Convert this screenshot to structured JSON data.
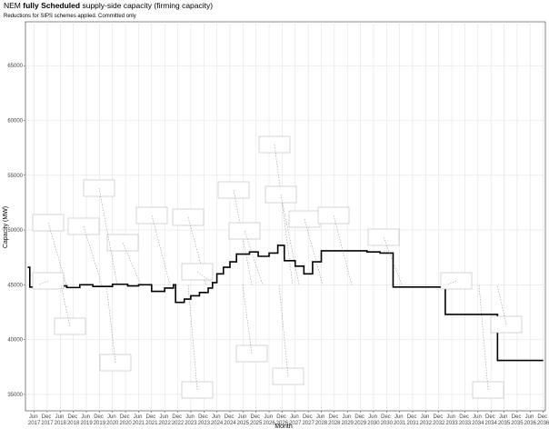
{
  "chart_data": {
    "type": "line",
    "title_prefix": "NEM",
    "title_bold": "fully Scheduled",
    "title_suffix": "supply-side capacity (firming capacity)",
    "subtitle": "Reductions for SIPS schemes applied. Committed only",
    "x_label": "Month",
    "y_label": "Capacity (MW)",
    "x": [
      "2017-03",
      "2017-04",
      "2018-01",
      "2018-09",
      "2019-03",
      "2019-09",
      "2020-06",
      "2021-01",
      "2021-06",
      "2021-12",
      "2022-06",
      "2022-10",
      "2022-11",
      "2023-03",
      "2023-06",
      "2023-10",
      "2024-02",
      "2024-04",
      "2024-06",
      "2024-09",
      "2024-12",
      "2025-03",
      "2025-09",
      "2026-01",
      "2026-06",
      "2026-10",
      "2027-01",
      "2027-06",
      "2027-10",
      "2028-02",
      "2028-06",
      "2030-03",
      "2030-09",
      "2031-03",
      "2033-03",
      "2035-03",
      "2036-12"
    ],
    "series": [
      {
        "color": "#000000",
        "values": [
          46600,
          44800,
          44900,
          44750,
          45000,
          44850,
          45050,
          44900,
          45000,
          44400,
          44700,
          45000,
          43400,
          43700,
          44000,
          44300,
          44700,
          45200,
          46000,
          46600,
          47100,
          47800,
          48000,
          47600,
          47900,
          48600,
          47200,
          46700,
          46000,
          47100,
          48100,
          48000,
          47900,
          44800,
          42300,
          38100,
          38100
        ]
      }
    ],
    "xlim": [
      "2017-02",
      "2037-01"
    ],
    "ylim": [
      33500,
      69000
    ],
    "yticks": [
      35000,
      40000,
      45000,
      50000,
      55000,
      60000,
      65000
    ],
    "xticks": [
      {
        "value": "2017-06",
        "label": "Jun 2017"
      },
      {
        "value": "2017-12",
        "label": "Dec 2017"
      },
      {
        "value": "2018-06",
        "label": "Jun 2018"
      },
      {
        "value": "2018-12",
        "label": "Dec 2018"
      },
      {
        "value": "2019-06",
        "label": "Jun 2019"
      },
      {
        "value": "2019-12",
        "label": "Dec 2019"
      },
      {
        "value": "2020-06",
        "label": "Jun 2020"
      },
      {
        "value": "2020-12",
        "label": "Dec 2020"
      },
      {
        "value": "2021-06",
        "label": "Jun 2021"
      },
      {
        "value": "2021-12",
        "label": "Dec 2021"
      },
      {
        "value": "2022-06",
        "label": "Jun 2022"
      },
      {
        "value": "2022-12",
        "label": "Dec 2022"
      },
      {
        "value": "2023-06",
        "label": "Jun 2023"
      },
      {
        "value": "2023-12",
        "label": "Dec 2023"
      },
      {
        "value": "2024-06",
        "label": "Jun 2024"
      },
      {
        "value": "2024-12",
        "label": "Dec 2024"
      },
      {
        "value": "2025-06",
        "label": "Jun 2025"
      },
      {
        "value": "2025-12",
        "label": "Dec 2025"
      },
      {
        "value": "2026-06",
        "label": "Jun 2026"
      },
      {
        "value": "2026-12",
        "label": "Dec 2026"
      },
      {
        "value": "2027-06",
        "label": "Jun 2027"
      },
      {
        "value": "2027-12",
        "label": "Dec 2027"
      },
      {
        "value": "2028-06",
        "label": "Jun 2028"
      },
      {
        "value": "2028-12",
        "label": "Dec 2028"
      },
      {
        "value": "2029-06",
        "label": "Jun 2029"
      },
      {
        "value": "2029-12",
        "label": "Dec 2029"
      },
      {
        "value": "2030-06",
        "label": "Jun 2030"
      },
      {
        "value": "2030-12",
        "label": "Dec 2030"
      },
      {
        "value": "2031-06",
        "label": "Jun 2031"
      },
      {
        "value": "2031-12",
        "label": "Dec 2031"
      },
      {
        "value": "2032-06",
        "label": "Jun 2032"
      },
      {
        "value": "2032-12",
        "label": "Dec 2032"
      },
      {
        "value": "2033-06",
        "label": "Jun 2033"
      },
      {
        "value": "2033-12",
        "label": "Dec 2033"
      },
      {
        "value": "2034-06",
        "label": "Jun 2034"
      },
      {
        "value": "2034-12",
        "label": "Dec 2034"
      },
      {
        "value": "2035-06",
        "label": "Jun 2035"
      },
      {
        "value": "2035-12",
        "label": "Dec 2035"
      },
      {
        "value": "2036-06",
        "label": "Jun 2036"
      },
      {
        "value": "2036-12",
        "label": "Dec 2036"
      }
    ],
    "grid": true
  }
}
